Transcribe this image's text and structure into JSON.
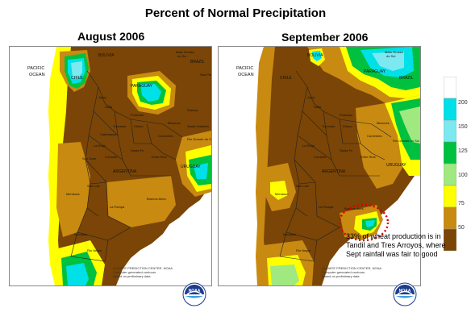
{
  "title": "Percent of Normal Precipitation",
  "panels": [
    {
      "month": "August 2006"
    },
    {
      "month": "September 2006"
    }
  ],
  "map_labels": {
    "pacific_ocean": [
      "PACIFIC",
      "OCEAN"
    ],
    "countries": [
      "BOLIVIA",
      "PARAGUAY",
      "BRAZIL",
      "CHILE",
      "URUGUAY",
      "ARGENTINA"
    ],
    "provinces": [
      "Mato Grosso do Sul",
      "Sao Paulo",
      "Jujuy",
      "Salta",
      "Tucuman",
      "Formosa",
      "Chaco",
      "Misiones",
      "Corrientes",
      "Santiago del Estero",
      "Catamarca",
      "La Rioja",
      "San Juan",
      "Santa Fe",
      "Entre Rios",
      "Cordoba",
      "San Luis",
      "Mendoza",
      "Rio Grande do Sul",
      "Santa Catarina",
      "Parana",
      "La Pampa",
      "Buenos Aires",
      "Neuquen",
      "Rio Negro",
      "Chubut"
    ]
  },
  "legend": {
    "ticks": [
      "200",
      "150",
      "125",
      "100",
      "75",
      "50"
    ],
    "colors": [
      "#ffffff",
      "#00e0e8",
      "#7ce8f0",
      "#00c040",
      "#a0e880",
      "#ffff00",
      "#c88a10",
      "#7a4506"
    ]
  },
  "annotation": "33% of wheat production is  in Tandil and Tres Arroyos, where Sept rainfall was fair to good",
  "credit": [
    "CLIMATE PREDICTION CENTER, NOAA",
    "Computer generated contours",
    "Based on preliminary data"
  ],
  "logo_text": "NOAA"
}
